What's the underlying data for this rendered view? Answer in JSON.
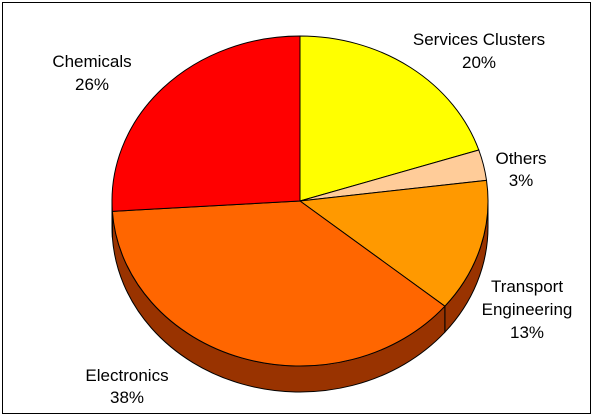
{
  "chart_data": {
    "type": "pie",
    "title": "",
    "slices": [
      {
        "label": "Services Clusters",
        "value": 20,
        "pct_label": "20%",
        "color": "#FFFF00"
      },
      {
        "label": "Others",
        "value": 3,
        "pct_label": "3%",
        "color": "#FFCC99"
      },
      {
        "label": "Transport Engineering",
        "value": 13,
        "pct_label": "13%",
        "color": "#FF9900"
      },
      {
        "label": "Electronics",
        "value": 38,
        "pct_label": "38%",
        "color": "#FF6600"
      },
      {
        "label": "Chemicals",
        "value": 26,
        "pct_label": "26%",
        "color": "#FF0000"
      }
    ],
    "start_angle_deg": 0,
    "direction": "clockwise",
    "style": "3d",
    "legend": "none",
    "depth_color": "#993300"
  }
}
